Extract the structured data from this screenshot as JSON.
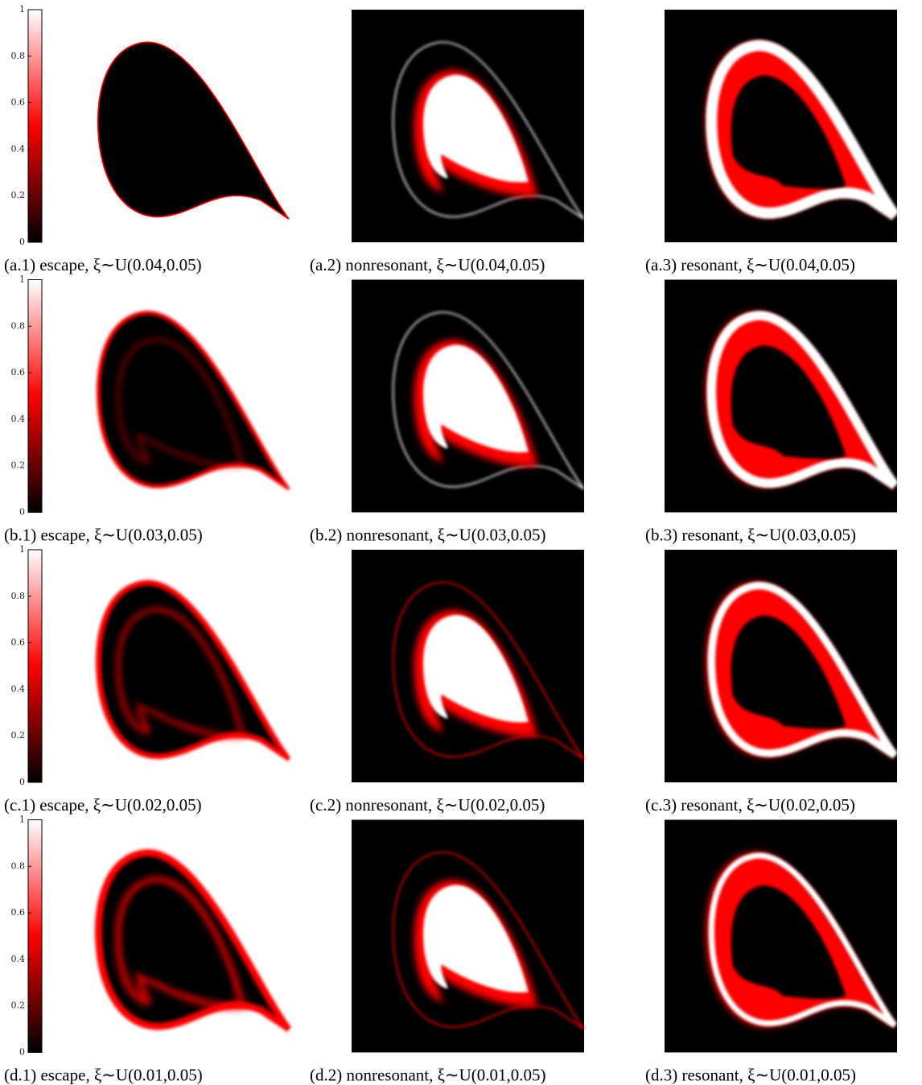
{
  "figure": {
    "colormap": [
      "#000000",
      "#ff0000",
      "#ffffff"
    ],
    "rows": [
      {
        "colorbar": {
          "lim": [
            0,
            1
          ],
          "ticks": [
            0,
            0.2,
            0.4,
            0.6,
            0.8,
            1
          ]
        },
        "captions": [
          "(a.1) escape, ξ∼U(0.04,0.05)",
          "(a.2) nonresonant, ξ∼U(0.04,0.05)",
          "(a.3) resonant, ξ∼U(0.04,0.05)"
        ]
      },
      {
        "colorbar": {
          "lim": [
            0,
            1
          ],
          "ticks": [
            0,
            0.2,
            0.4,
            0.6,
            0.8,
            1
          ]
        },
        "captions": [
          "(b.1) escape, ξ∼U(0.03,0.05)",
          "(b.2) nonresonant, ξ∼U(0.03,0.05)",
          "(b.3) resonant, ξ∼U(0.03,0.05)"
        ]
      },
      {
        "colorbar": {
          "lim": [
            0,
            1
          ],
          "ticks": [
            0,
            0.2,
            0.4,
            0.6,
            0.8,
            1
          ]
        },
        "captions": [
          "(c.1) escape, ξ∼U(0.02,0.05)",
          "(c.2) nonresonant, ξ∼U(0.02,0.05)",
          "(c.3) resonant, ξ∼U(0.02,0.05)"
        ]
      },
      {
        "colorbar": {
          "lim": [
            0,
            1
          ],
          "ticks": [
            0,
            0.2,
            0.4,
            0.6,
            0.8,
            1
          ]
        },
        "captions": [
          "(d.1) escape, ξ∼U(0.01,0.05)",
          "(d.2) nonresonant, ξ∼U(0.01,0.05)",
          "(d.3) resonant, ξ∼U(0.01,0.05)"
        ]
      }
    ]
  }
}
